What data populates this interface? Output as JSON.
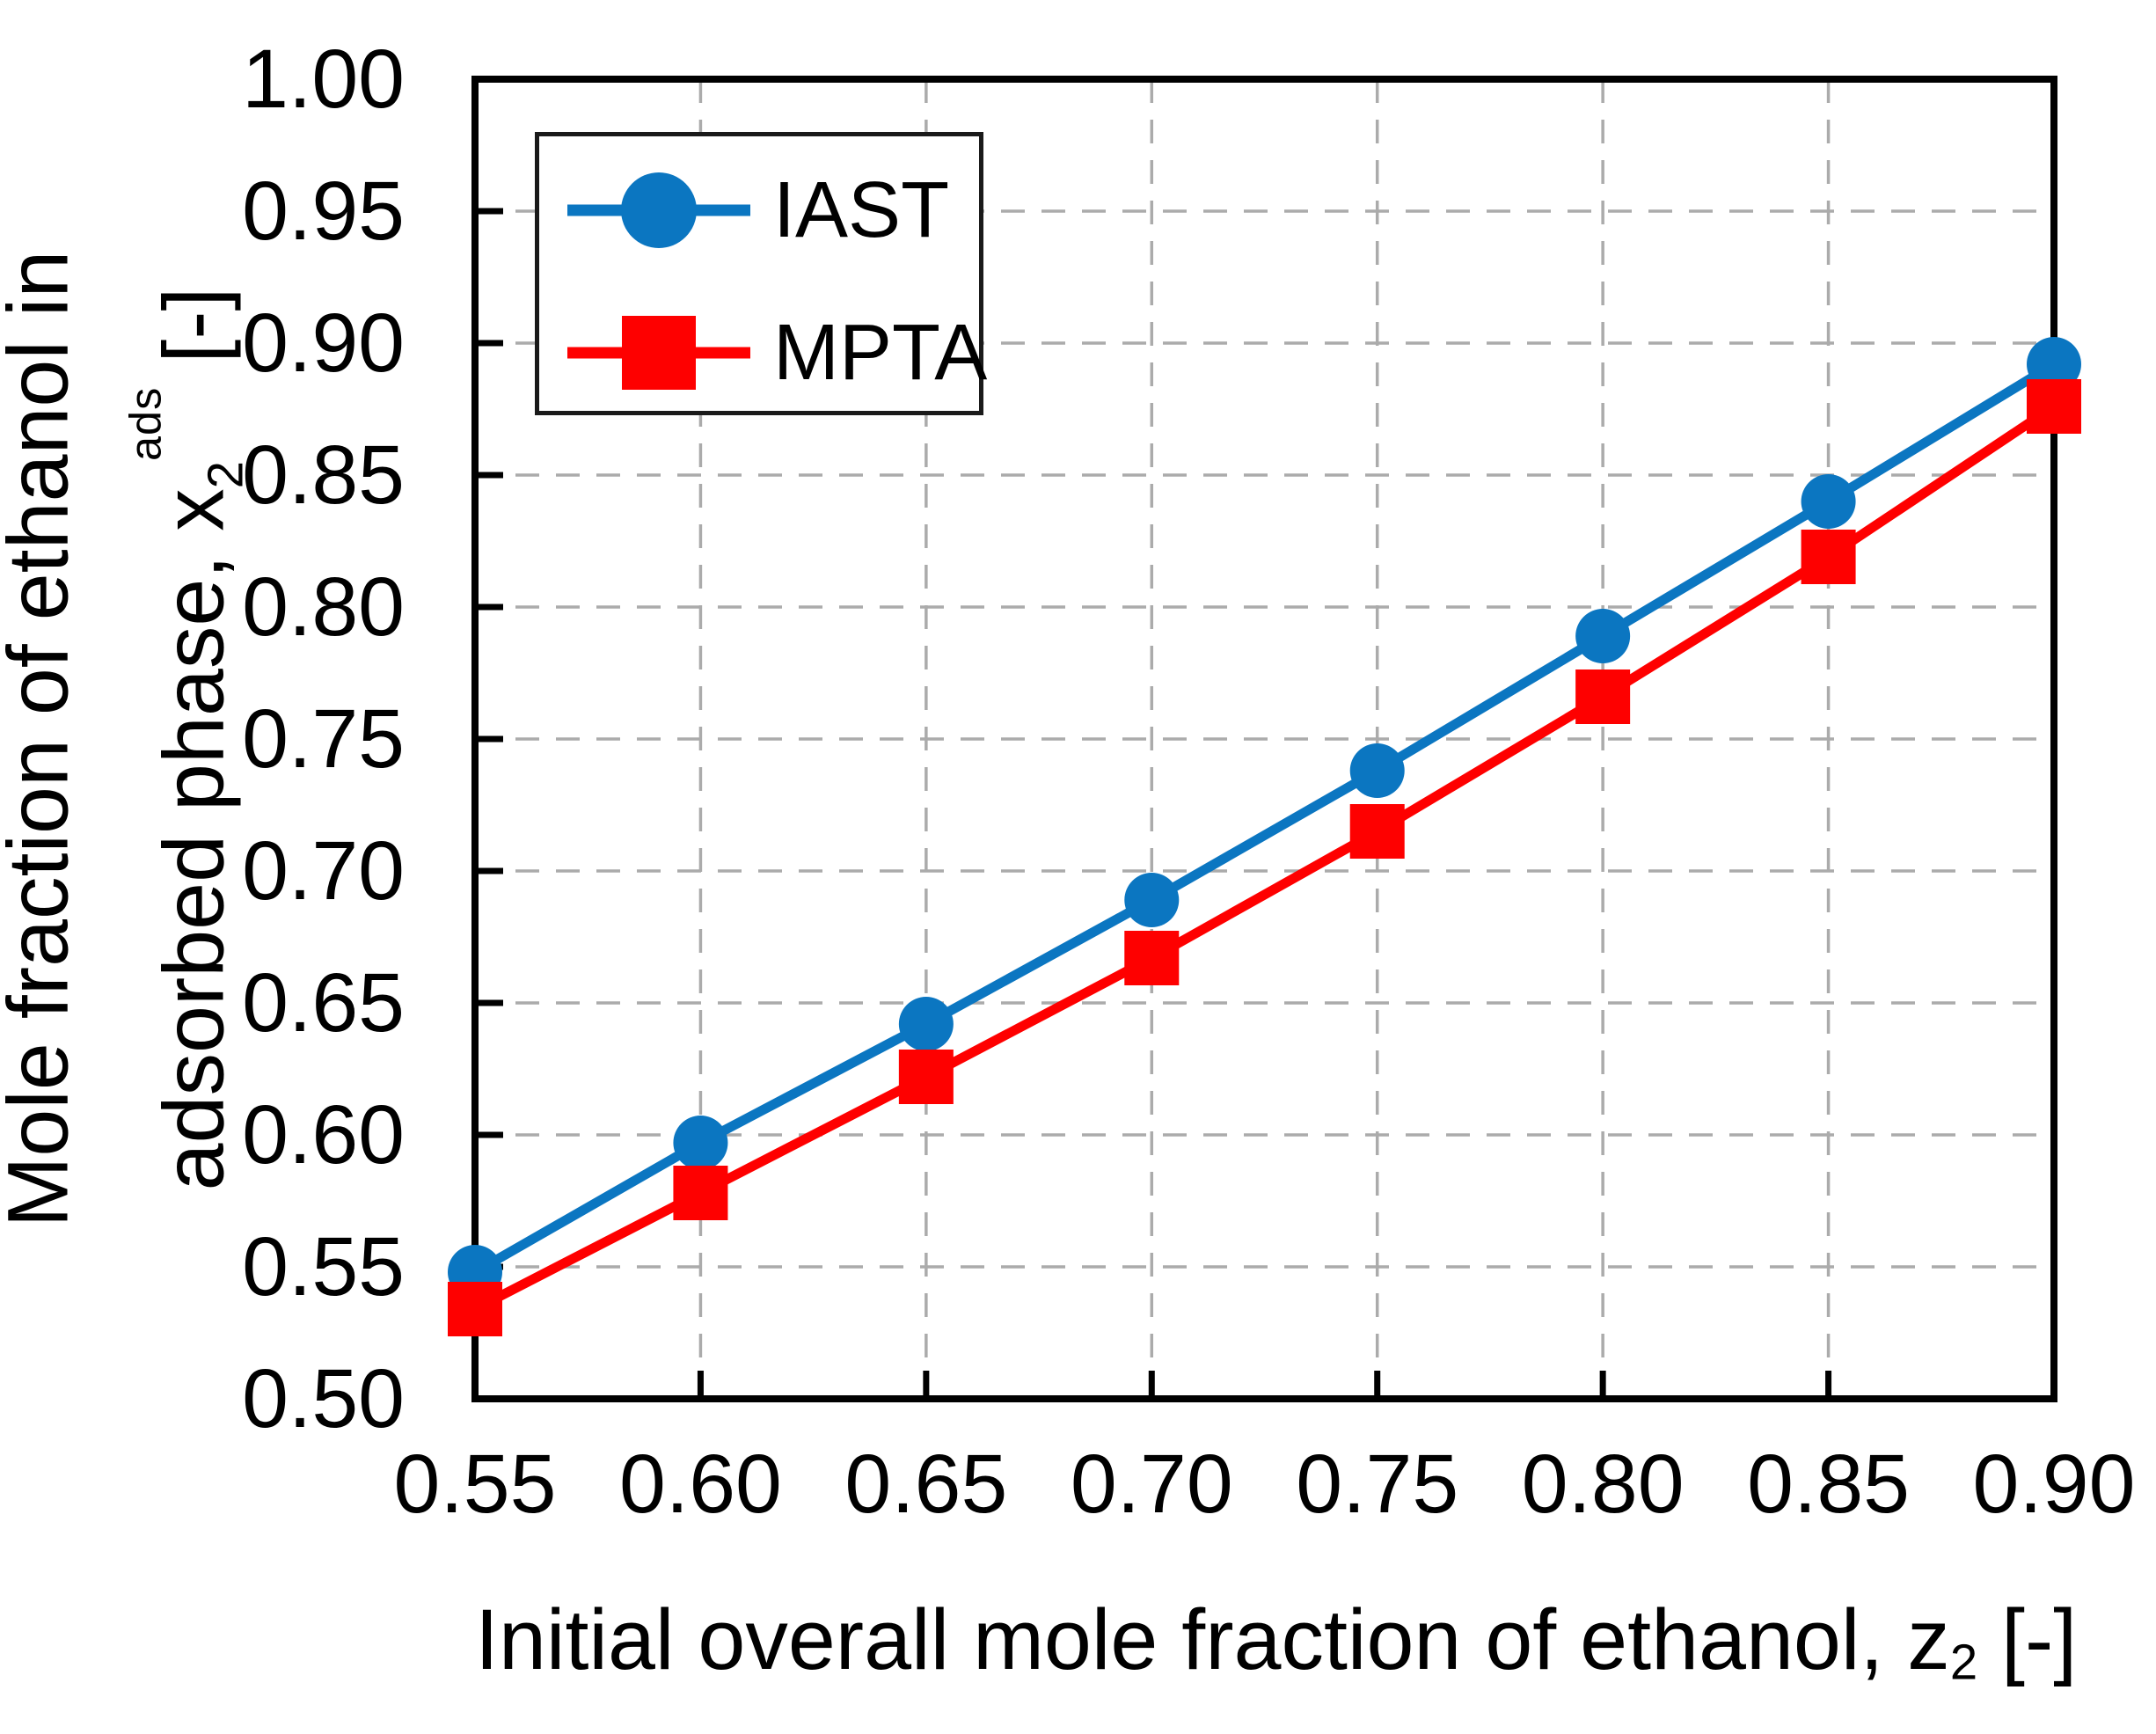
{
  "chart_data": {
    "type": "line",
    "x": [
      0.55,
      0.6,
      0.65,
      0.7,
      0.75,
      0.8,
      0.85,
      0.9
    ],
    "series": [
      {
        "name": "IAST",
        "color": "#0b76c1",
        "marker": "circle",
        "values": [
          0.548,
          0.597,
          0.642,
          0.689,
          0.738,
          0.789,
          0.84,
          0.892
        ]
      },
      {
        "name": "MPTA",
        "color": "#fe0000",
        "marker": "square",
        "values": [
          0.534,
          0.578,
          0.622,
          0.667,
          0.715,
          0.766,
          0.819,
          0.876
        ]
      }
    ],
    "xlim": [
      0.55,
      0.9
    ],
    "ylim": [
      0.5,
      1.0
    ],
    "x_ticks": [
      "0.55",
      "0.60",
      "0.65",
      "0.70",
      "0.75",
      "0.80",
      "0.85",
      "0.90"
    ],
    "y_ticks": [
      "1.00",
      "0.95",
      "0.90",
      "0.85",
      "0.80",
      "0.75",
      "0.70",
      "0.65",
      "0.60",
      "0.55",
      "0.50"
    ],
    "grid": "dashed",
    "grid_color": "#ababab",
    "frame_color": "#000000",
    "legend_position": "top-left",
    "xlabel": {
      "prefix": "Initial overall mole fraction of ethanol, z",
      "sub": "2",
      "suffix": " [-]"
    },
    "ylabel": {
      "line1": "Mole fraction of ethanol in",
      "line2_prefix": "adsorbed phase, x",
      "sub": "2",
      "sup": "ads",
      "suffix": " [-]"
    }
  }
}
